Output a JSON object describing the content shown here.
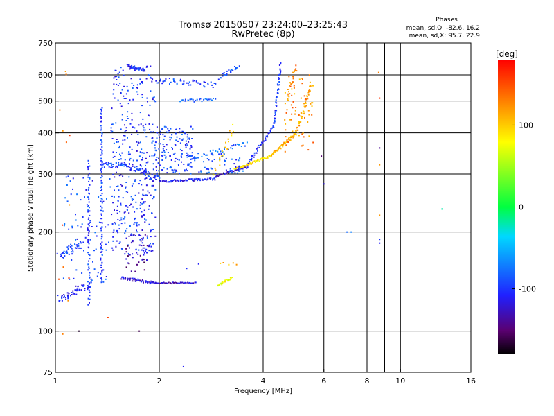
{
  "chart_data": {
    "type": "scatter",
    "title": "Tromsø 20150507 23:24:00–23:25:43",
    "subtitle": "RwPretec (8p)",
    "xlabel": "Frequency [MHz]",
    "ylabel": "Stationary phase Virtual Height [km]",
    "x_scale": "log",
    "y_scale": "log",
    "xlim": [
      1,
      16
    ],
    "ylim": [
      75,
      750
    ],
    "xticks": [
      "1",
      "2",
      "4",
      "6",
      "8",
      "10",
      "16"
    ],
    "xtick_values": [
      1,
      2,
      4,
      6,
      8,
      10,
      16
    ],
    "x_gridlines": [
      2,
      4,
      6,
      8,
      9,
      10
    ],
    "yticks": [
      "75",
      "100",
      "200",
      "300",
      "400",
      "500",
      "600",
      "750"
    ],
    "ytick_values": [
      75,
      100,
      200,
      300,
      400,
      500,
      600,
      750
    ],
    "y_gridlines": [
      100,
      200,
      300,
      400,
      500,
      600
    ],
    "grid": true,
    "legend": {
      "title": "Phases",
      "line1": "mean, sd,O: -82.6, 16.2",
      "line2": "mean, sd,X:  95.7, 22.9",
      "placement": "top-right"
    },
    "colorbar": {
      "label": "[deg]",
      "range": [
        -180,
        180
      ],
      "ticks": [
        "100",
        "0",
        "-100"
      ],
      "tick_values": [
        100,
        0,
        -100
      ],
      "colormap": "rainbow (black-purple-blue-cyan-green-yellow-red)"
    },
    "series": [
      {
        "traces": [
          {
            "x0": 1.02,
            "x1": 1.28,
            "y0": 125,
            "y1": 140,
            "phase": -110,
            "n": 60,
            "jitter": 0.06
          },
          {
            "x0": 1.02,
            "x1": 1.2,
            "y0": 170,
            "y1": 185,
            "phase": -95,
            "n": 35,
            "jitter": 0.05
          },
          {
            "x0": 1.25,
            "x1": 1.25,
            "y0": 120,
            "y1": 330,
            "phase": -100,
            "n": 60,
            "jitter": 0.02
          },
          {
            "x0": 1.36,
            "x1": 1.36,
            "y0": 140,
            "y1": 480,
            "phase": -98,
            "n": 90,
            "jitter": 0.02
          },
          {
            "x0": 1.36,
            "x1": 1.62,
            "y0": 320,
            "y1": 320,
            "phase": -90,
            "n": 35,
            "jitter": 0.04
          },
          {
            "x0": 1.55,
            "x1": 1.95,
            "y0": 145,
            "y1": 140,
            "phase": -120,
            "n": 55,
            "jitter": 0.02
          },
          {
            "x0": 1.95,
            "x1": 2.55,
            "y0": 140,
            "y1": 140,
            "phase": -125,
            "n": 40,
            "jitter": 0.01
          },
          {
            "x0": 1.62,
            "x1": 1.82,
            "y0": 640,
            "y1": 620,
            "phase": -105,
            "n": 40,
            "jitter": 0.02
          },
          {
            "x0": 1.9,
            "x1": 2.9,
            "y0": 580,
            "y1": 560,
            "phase": -95,
            "n": 50,
            "jitter": 0.04
          },
          {
            "x0": 2.3,
            "x1": 2.9,
            "y0": 500,
            "y1": 505,
            "phase": -85,
            "n": 25,
            "jitter": 0.02
          },
          {
            "x0": 3.0,
            "x1": 3.4,
            "y0": 590,
            "y1": 640,
            "phase": -90,
            "n": 25,
            "jitter": 0.03
          },
          {
            "x0": 1.6,
            "x1": 2.0,
            "y0": 320,
            "y1": 290,
            "phase": -100,
            "n": 50,
            "jitter": 0.04
          },
          {
            "x0": 2.0,
            "x1": 2.9,
            "y0": 285,
            "y1": 290,
            "phase": -110,
            "n": 60,
            "jitter": 0.015
          },
          {
            "x0": 2.9,
            "x1": 3.6,
            "y0": 295,
            "y1": 315,
            "phase": -120,
            "n": 40,
            "jitter": 0.015
          },
          {
            "x0": 3.6,
            "x1": 4.3,
            "y0": 320,
            "y1": 420,
            "phase": -105,
            "n": 40,
            "jitter": 0.02
          },
          {
            "x0": 4.3,
            "x1": 4.5,
            "y0": 420,
            "y1": 650,
            "phase": -100,
            "n": 45,
            "jitter": 0.02
          },
          {
            "x0": 2.4,
            "x1": 3.6,
            "y0": 335,
            "y1": 370,
            "phase": -80,
            "n": 35,
            "jitter": 0.03
          },
          {
            "x0": 3.3,
            "x1": 4.2,
            "y0": 310,
            "y1": 340,
            "phase": 90,
            "n": 55,
            "jitter": 0.015
          },
          {
            "x0": 4.2,
            "x1": 5.0,
            "y0": 340,
            "y1": 400,
            "phase": 110,
            "n": 55,
            "jitter": 0.02
          },
          {
            "x0": 5.0,
            "x1": 5.5,
            "y0": 400,
            "y1": 560,
            "phase": 115,
            "n": 45,
            "jitter": 0.03
          },
          {
            "x0": 4.7,
            "x1": 5.0,
            "y0": 520,
            "y1": 640,
            "phase": 130,
            "n": 20,
            "jitter": 0.03
          },
          {
            "x0": 2.9,
            "x1": 3.3,
            "y0": 300,
            "y1": 420,
            "phase": 100,
            "n": 20,
            "jitter": 0.05
          },
          {
            "x0": 2.95,
            "x1": 3.25,
            "y0": 138,
            "y1": 145,
            "phase": 75,
            "n": 25,
            "jitter": 0.02
          },
          {
            "x0": 3.0,
            "x1": 3.35,
            "y0": 160,
            "y1": 160,
            "phase": 110,
            "n": 5,
            "jitter": 0.02
          }
        ],
        "clouds": [
          {
            "x0": 1.45,
            "x1": 1.95,
            "y0": 170,
            "y1": 640,
            "phase": -100,
            "n": 380
          },
          {
            "x0": 1.95,
            "x1": 2.5,
            "y0": 300,
            "y1": 420,
            "phase": -95,
            "n": 140
          },
          {
            "x0": 2.4,
            "x1": 3.5,
            "y0": 300,
            "y1": 350,
            "phase": -90,
            "n": 60
          },
          {
            "x0": 1.05,
            "x1": 1.45,
            "y0": 140,
            "y1": 300,
            "phase": -95,
            "n": 90
          },
          {
            "x0": 1.6,
            "x1": 1.85,
            "y0": 150,
            "y1": 200,
            "phase": -135,
            "n": 40
          },
          {
            "x0": 4.6,
            "x1": 5.6,
            "y0": 350,
            "y1": 620,
            "phase": 125,
            "n": 60
          },
          {
            "x0": 1.02,
            "x1": 1.1,
            "y0": 90,
            "y1": 620,
            "phase": 140,
            "n": 12
          }
        ],
        "isolated": [
          {
            "x": 1.17,
            "y": 100,
            "phase": -170
          },
          {
            "x": 1.75,
            "y": 100,
            "phase": -160
          },
          {
            "x": 1.42,
            "y": 110,
            "phase": 155
          },
          {
            "x": 8.7,
            "y": 190,
            "phase": -100
          },
          {
            "x": 8.7,
            "y": 185,
            "phase": -110
          },
          {
            "x": 8.7,
            "y": 360,
            "phase": -140
          },
          {
            "x": 8.7,
            "y": 320,
            "phase": 120
          },
          {
            "x": 8.7,
            "y": 225,
            "phase": 120
          },
          {
            "x": 8.7,
            "y": 510,
            "phase": 160
          },
          {
            "x": 8.65,
            "y": 610,
            "phase": 130
          },
          {
            "x": 7.0,
            "y": 200,
            "phase": -80
          },
          {
            "x": 7.2,
            "y": 200,
            "phase": -70
          },
          {
            "x": 6.0,
            "y": 280,
            "phase": -120
          },
          {
            "x": 5.9,
            "y": 340,
            "phase": -150
          },
          {
            "x": 13.2,
            "y": 235,
            "phase": -20
          },
          {
            "x": 2.6,
            "y": 160,
            "phase": -110
          },
          {
            "x": 2.4,
            "y": 155,
            "phase": -105
          },
          {
            "x": 2.35,
            "y": 78,
            "phase": -110
          },
          {
            "x": 1.05,
            "y": 98,
            "phase": 130
          }
        ]
      }
    ]
  }
}
